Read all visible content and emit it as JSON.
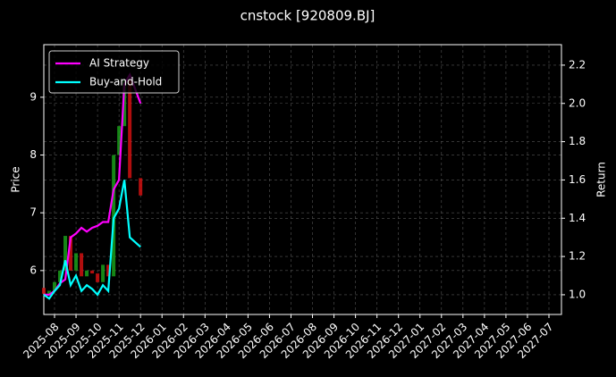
{
  "chart_data": {
    "type": "combo",
    "title": "cnstock [920809.BJ]",
    "y_label": "Price",
    "y2_label": "Return",
    "xticks": [
      "2025-08",
      "2025-09",
      "2025-10",
      "2025-11",
      "2025-12",
      "2026-01",
      "2026-02",
      "2026-03",
      "2026-04",
      "2026-05",
      "2026-06",
      "2026-07",
      "2026-08",
      "2026-09",
      "2026-10",
      "2026-11",
      "2026-12",
      "2027-01",
      "2027-02",
      "2027-03",
      "2027-04",
      "2027-05",
      "2027-06",
      "2027-07"
    ],
    "x": [
      "2025-08",
      "2025-08",
      "2025-08",
      "2025-08",
      "2025-09",
      "2025-09",
      "2025-09",
      "2025-09",
      "2025-10",
      "2025-10",
      "2025-10",
      "2025-10",
      "2025-11",
      "2025-11",
      "2025-11",
      "2025-11",
      "2025-12",
      "2025-12"
    ],
    "ylim": [
      5.24,
      9.91
    ],
    "yticks": [
      6,
      7,
      8,
      9
    ],
    "y2lim": [
      0.897,
      2.307
    ],
    "y2ticks": [
      {
        "value": 1.0,
        "label": "1.0"
      },
      {
        "value": 1.2,
        "label": "1.2"
      },
      {
        "value": 1.4,
        "label": "1.4"
      },
      {
        "value": 1.6,
        "label": "1.6"
      },
      {
        "value": 1.8,
        "label": "1.8"
      },
      {
        "value": 2.0,
        "label": "2.0"
      },
      {
        "value": 2.2,
        "label": "2.2"
      }
    ],
    "grid": true,
    "legend": "upper left",
    "price": {
      "up_color": "#1a9e1a",
      "down_color": "#d01010",
      "open": [
        5.7,
        5.6,
        5.65,
        5.8,
        6.0,
        6.6,
        6.0,
        6.3,
        5.9,
        6.0,
        5.95,
        5.8,
        6.1,
        5.9,
        8.0,
        8.5,
        9.3,
        7.6
      ],
      "close": [
        5.6,
        5.65,
        5.8,
        6.0,
        6.6,
        6.0,
        6.3,
        5.9,
        6.0,
        5.95,
        5.8,
        6.1,
        5.9,
        8.0,
        8.5,
        9.3,
        7.6,
        7.3
      ]
    },
    "series": [
      {
        "name": "AI Strategy",
        "color": "#ff00ff",
        "axis": "y2",
        "values": [
          1.0,
          1.0,
          1.02,
          1.06,
          1.08,
          1.3,
          1.32,
          1.35,
          1.33,
          1.35,
          1.36,
          1.38,
          1.38,
          1.55,
          1.6,
          2.1,
          2.15,
          2.0
        ]
      },
      {
        "name": "Buy-and-Hold",
        "color": "#00ffff",
        "axis": "y2",
        "values": [
          1.0,
          0.98,
          1.02,
          1.05,
          1.18,
          1.05,
          1.1,
          1.02,
          1.05,
          1.03,
          1.0,
          1.05,
          1.02,
          1.4,
          1.45,
          1.6,
          1.3,
          1.25
        ]
      }
    ]
  }
}
